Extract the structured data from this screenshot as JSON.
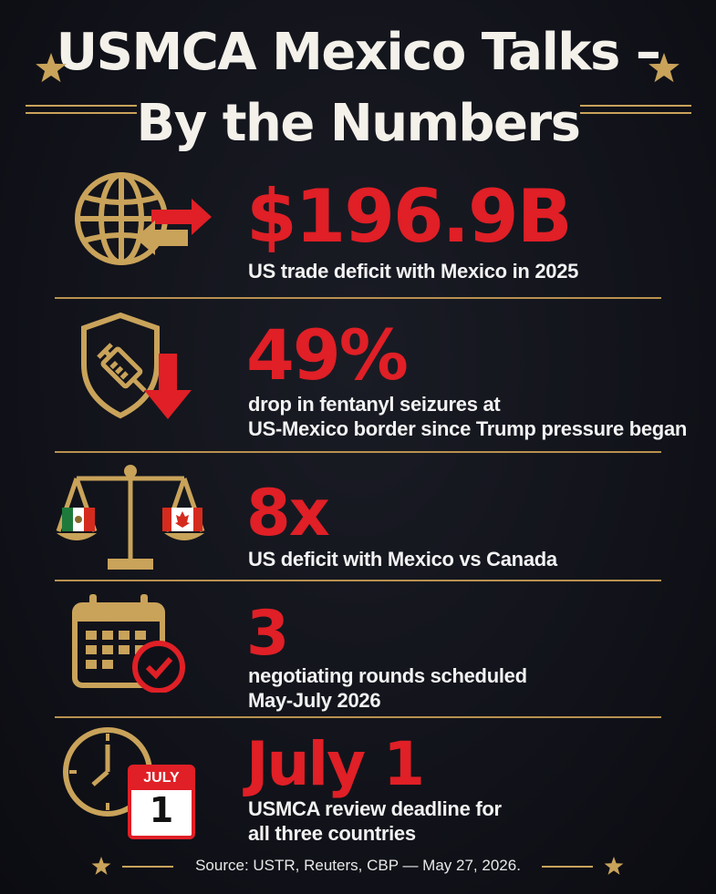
{
  "title": {
    "line1": "USMCA Mexico Talks –",
    "line2": "By the Numbers"
  },
  "colors": {
    "background": "#101118",
    "accent_red": "#e01f26",
    "gold": "#c9a35a",
    "text": "#f2f2f2"
  },
  "stats": [
    {
      "value": "$196.9B",
      "icon": "globe-trade-arrows-icon",
      "description": [
        "US trade deficit with Mexico in 2025"
      ]
    },
    {
      "value": "49%",
      "icon": "shield-syringe-down-arrow-icon",
      "description": [
        "drop in fentanyl seizures at",
        "US-Mexico border since Trump pressure began"
      ]
    },
    {
      "value": "8x",
      "icon": "balance-scale-flags-icon",
      "description": [
        "US deficit with Mexico vs Canada"
      ]
    },
    {
      "value": "3",
      "icon": "calendar-check-icon",
      "description": [
        "negotiating rounds scheduled",
        "May-July 2026"
      ]
    },
    {
      "value": "July 1",
      "icon": "clock-calendar-icon",
      "description": [
        "USMCA review deadline for",
        "all three countries"
      ],
      "calendar_month": "JULY",
      "calendar_day": "1"
    }
  ],
  "footer": {
    "source": "Source: USTR, Reuters, CBP — May 27, 2026."
  }
}
